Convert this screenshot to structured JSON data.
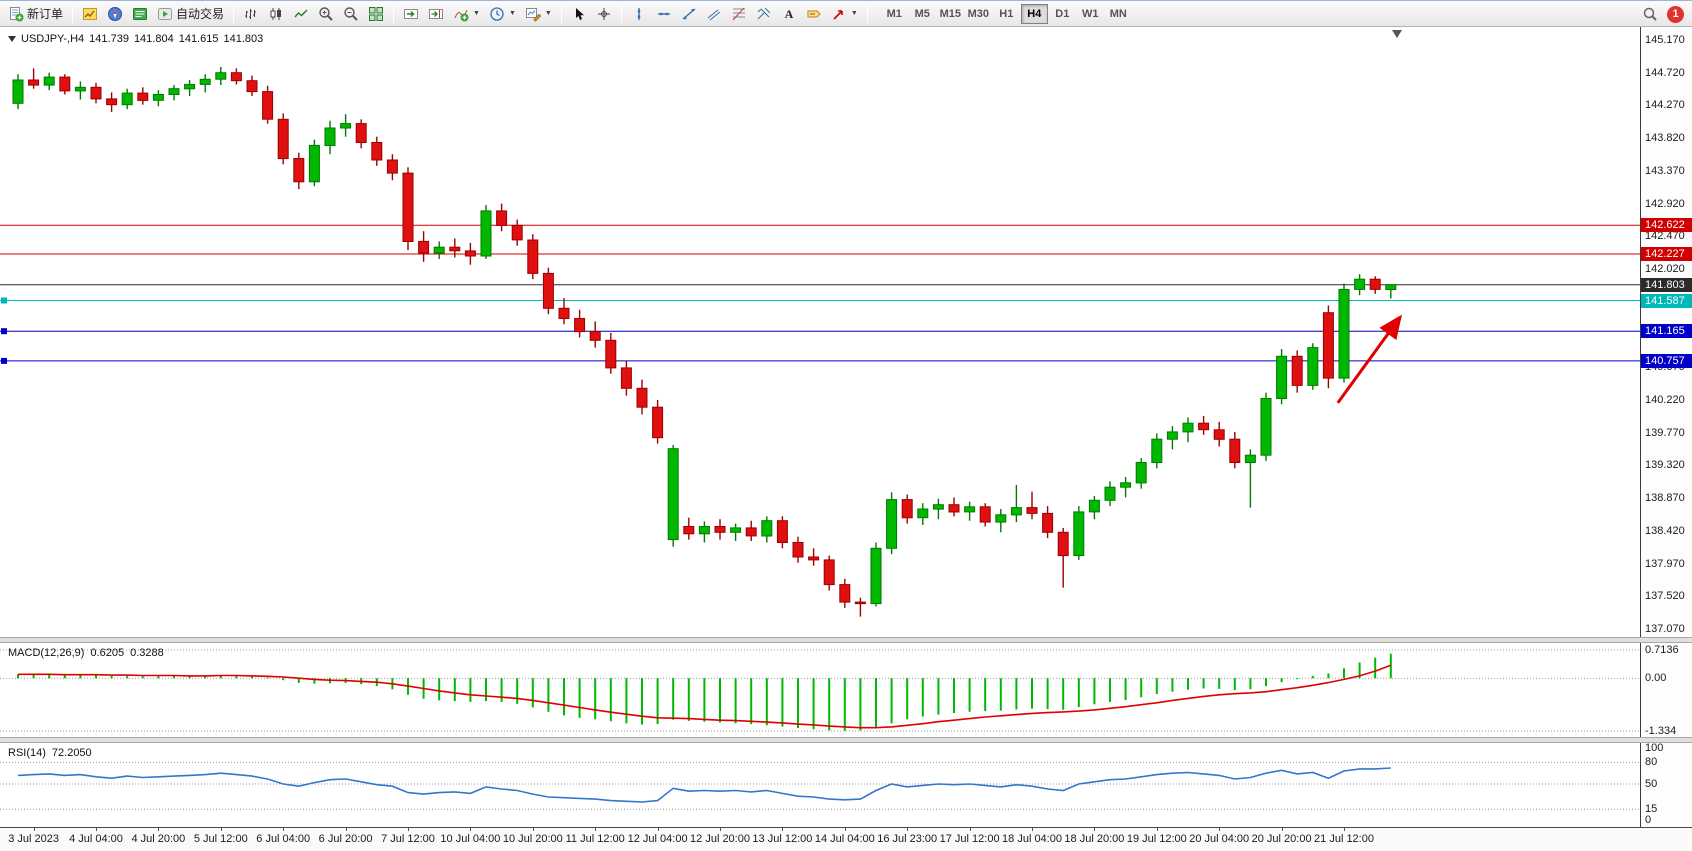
{
  "toolbar": {
    "new_order": {
      "label": "新订单"
    },
    "autotrading": {
      "label": "自动交易"
    },
    "timeframes": {
      "items": [
        "M1",
        "M5",
        "M15",
        "M30",
        "H1",
        "H4",
        "D1",
        "W1",
        "MN"
      ],
      "active": "H4"
    },
    "badge": {
      "count": "1"
    }
  },
  "chart": {
    "symbol": "USDJPY-,H4",
    "ohlc_open": "141.739",
    "ohlc_high": "141.804",
    "ohlc_low": "141.615",
    "ohlc_close": "141.803"
  },
  "chart_data": {
    "type": "candlestick",
    "symbol": "USDJPY-",
    "timeframe": "H4",
    "colors": {
      "up": "#00b800",
      "up_border": "#007a00",
      "down": "#e01010",
      "down_border": "#9c0000"
    },
    "price_axis": {
      "max": 145.17,
      "min": 137.07,
      "tick_step": 0.45,
      "ticks": [
        "145.170",
        "144.720",
        "144.270",
        "143.820",
        "143.370",
        "142.920",
        "142.470",
        "142.020",
        "141.570",
        "141.120",
        "140.670",
        "140.220",
        "139.770",
        "139.320",
        "138.870",
        "138.420",
        "137.970",
        "137.520",
        "137.070"
      ]
    },
    "time_labels": [
      "3 Jul 2023",
      "4 Jul 04:00",
      "4 Jul 20:00",
      "5 Jul 12:00",
      "6 Jul 04:00",
      "6 Jul 20:00",
      "7 Jul 12:00",
      "10 Jul 04:00",
      "10 Jul 20:00",
      "11 Jul 12:00",
      "12 Jul 04:00",
      "12 Jul 20:00",
      "13 Jul 12:00",
      "14 Jul 04:00",
      "16 Jul 23:00",
      "17 Jul 12:00",
      "18 Jul 04:00",
      "18 Jul 20:00",
      "19 Jul 12:00",
      "20 Jul 04:00",
      "20 Jul 20:00",
      "21 Jul 12:00"
    ],
    "label_every": 4,
    "label_offset": 1,
    "candles": [
      [
        144.3,
        144.7,
        144.22,
        144.62
      ],
      [
        144.62,
        144.78,
        144.5,
        144.55
      ],
      [
        144.55,
        144.72,
        144.48,
        144.66
      ],
      [
        144.66,
        144.7,
        144.42,
        144.47
      ],
      [
        144.47,
        144.6,
        144.35,
        144.52
      ],
      [
        144.52,
        144.58,
        144.3,
        144.36
      ],
      [
        144.36,
        144.45,
        144.18,
        144.28
      ],
      [
        144.28,
        144.5,
        144.22,
        144.44
      ],
      [
        144.44,
        144.52,
        144.28,
        144.34
      ],
      [
        144.34,
        144.48,
        144.26,
        144.42
      ],
      [
        144.42,
        144.55,
        144.34,
        144.5
      ],
      [
        144.5,
        144.62,
        144.4,
        144.56
      ],
      [
        144.56,
        144.7,
        144.45,
        144.63
      ],
      [
        144.63,
        144.8,
        144.55,
        144.72
      ],
      [
        144.72,
        144.78,
        144.56,
        144.61
      ],
      [
        144.61,
        144.68,
        144.4,
        144.46
      ],
      [
        144.46,
        144.54,
        144.02,
        144.08
      ],
      [
        144.08,
        144.16,
        143.46,
        143.54
      ],
      [
        143.54,
        143.62,
        143.12,
        143.22
      ],
      [
        143.22,
        143.8,
        143.16,
        143.72
      ],
      [
        143.72,
        144.06,
        143.6,
        143.96
      ],
      [
        143.96,
        144.15,
        143.84,
        144.02
      ],
      [
        144.02,
        144.08,
        143.68,
        143.76
      ],
      [
        143.76,
        143.84,
        143.44,
        143.52
      ],
      [
        143.52,
        143.6,
        143.24,
        143.34
      ],
      [
        143.34,
        143.42,
        142.28,
        142.4
      ],
      [
        142.4,
        142.54,
        142.12,
        142.24
      ],
      [
        142.24,
        142.4,
        142.16,
        142.32
      ],
      [
        142.32,
        142.44,
        142.18,
        142.27
      ],
      [
        142.27,
        142.38,
        142.08,
        142.2
      ],
      [
        142.2,
        142.9,
        142.16,
        142.82
      ],
      [
        142.82,
        142.92,
        142.54,
        142.62
      ],
      [
        142.62,
        142.7,
        142.34,
        142.42
      ],
      [
        142.42,
        142.5,
        141.88,
        141.96
      ],
      [
        141.96,
        142.04,
        141.4,
        141.48
      ],
      [
        141.48,
        141.62,
        141.26,
        141.34
      ],
      [
        141.34,
        141.46,
        141.08,
        141.16
      ],
      [
        141.16,
        141.3,
        140.94,
        141.04
      ],
      [
        141.04,
        141.14,
        140.58,
        140.66
      ],
      [
        140.66,
        140.76,
        140.28,
        140.38
      ],
      [
        140.38,
        140.5,
        140.02,
        140.12
      ],
      [
        140.12,
        140.22,
        139.62,
        139.7
      ],
      [
        138.3,
        139.6,
        138.2,
        139.55
      ],
      [
        138.48,
        138.6,
        138.3,
        138.38
      ],
      [
        138.38,
        138.55,
        138.26,
        138.48
      ],
      [
        138.48,
        138.58,
        138.3,
        138.4
      ],
      [
        138.4,
        138.52,
        138.28,
        138.46
      ],
      [
        138.46,
        138.56,
        138.28,
        138.35
      ],
      [
        138.35,
        138.62,
        138.26,
        138.56
      ],
      [
        138.56,
        138.62,
        138.18,
        138.26
      ],
      [
        138.26,
        138.34,
        137.98,
        138.06
      ],
      [
        138.06,
        138.18,
        137.94,
        138.02
      ],
      [
        138.02,
        138.08,
        137.6,
        137.68
      ],
      [
        137.68,
        137.76,
        137.36,
        137.44
      ],
      [
        137.44,
        137.5,
        137.24,
        137.42
      ],
      [
        137.42,
        138.26,
        137.38,
        138.18
      ],
      [
        138.18,
        138.95,
        138.1,
        138.85
      ],
      [
        138.85,
        138.92,
        138.52,
        138.6
      ],
      [
        138.6,
        138.8,
        138.5,
        138.72
      ],
      [
        138.72,
        138.86,
        138.58,
        138.78
      ],
      [
        138.78,
        138.88,
        138.62,
        138.68
      ],
      [
        138.68,
        138.82,
        138.56,
        138.75
      ],
      [
        138.75,
        138.8,
        138.48,
        138.54
      ],
      [
        138.54,
        138.72,
        138.4,
        138.64
      ],
      [
        138.64,
        139.05,
        138.54,
        138.74
      ],
      [
        138.74,
        138.96,
        138.58,
        138.66
      ],
      [
        138.66,
        138.76,
        138.32,
        138.4
      ],
      [
        138.4,
        138.46,
        137.64,
        138.08
      ],
      [
        138.08,
        138.76,
        138.02,
        138.68
      ],
      [
        138.68,
        138.9,
        138.58,
        138.84
      ],
      [
        138.84,
        139.1,
        138.76,
        139.02
      ],
      [
        139.02,
        139.16,
        138.88,
        139.08
      ],
      [
        139.08,
        139.42,
        139.0,
        139.36
      ],
      [
        139.36,
        139.76,
        139.28,
        139.68
      ],
      [
        139.68,
        139.86,
        139.54,
        139.78
      ],
      [
        139.78,
        139.98,
        139.64,
        139.9
      ],
      [
        139.9,
        140.0,
        139.74,
        139.81
      ],
      [
        139.81,
        139.92,
        139.58,
        139.68
      ],
      [
        139.68,
        139.78,
        139.28,
        139.36
      ],
      [
        139.36,
        139.54,
        138.74,
        139.46
      ],
      [
        139.46,
        140.32,
        139.38,
        140.24
      ],
      [
        140.24,
        140.92,
        140.16,
        140.82
      ],
      [
        140.82,
        140.9,
        140.32,
        140.42
      ],
      [
        140.42,
        141.0,
        140.36,
        140.94
      ],
      [
        141.42,
        141.52,
        140.38,
        140.52
      ],
      [
        140.52,
        141.82,
        140.46,
        141.74
      ],
      [
        141.74,
        141.95,
        141.66,
        141.88
      ],
      [
        141.88,
        141.92,
        141.68,
        141.74
      ],
      [
        141.739,
        141.804,
        141.615,
        141.803
      ]
    ],
    "hlines": [
      {
        "price": 142.622,
        "label": "142.622",
        "color": "#d00000",
        "handles": false
      },
      {
        "price": 142.227,
        "label": "142.227",
        "color": "#d00000",
        "handles": false
      },
      {
        "price": 141.803,
        "label": "141.803",
        "color": "#2b2b2b",
        "handles": false,
        "is_price_line": true
      },
      {
        "price": 141.587,
        "label": "141.587",
        "color": "#00b8b8",
        "handles": true
      },
      {
        "price": 141.165,
        "label": "141.165",
        "color": "#0000c8",
        "handles": true
      },
      {
        "price": 140.757,
        "label": "140.757",
        "color": "#0000c8",
        "handles": true
      }
    ],
    "arrow": {
      "from_index": 84.6,
      "from_price": 140.18,
      "to_index": 88.6,
      "to_price": 141.36,
      "color": "#e00000"
    },
    "macd": {
      "name": "MACD(12,26,9)",
      "main_value": "0.6205",
      "signal_value": "0.3288",
      "max": 0.7136,
      "min": -1.334,
      "axis_labels": [
        "0.7136",
        "0.00",
        "-1.334"
      ],
      "histogram_color": "#00b800",
      "signal_color": "#e00000",
      "histogram": [
        0.1,
        0.09,
        0.09,
        0.08,
        0.08,
        0.07,
        0.06,
        0.06,
        0.05,
        0.05,
        0.06,
        0.06,
        0.07,
        0.08,
        0.07,
        0.05,
        0.02,
        -0.05,
        -0.12,
        -0.14,
        -0.13,
        -0.12,
        -0.15,
        -0.2,
        -0.28,
        -0.42,
        -0.52,
        -0.56,
        -0.58,
        -0.6,
        -0.58,
        -0.6,
        -0.65,
        -0.74,
        -0.85,
        -0.94,
        -1.0,
        -1.04,
        -1.09,
        -1.14,
        -1.17,
        -1.16,
        -1.05,
        -1.08,
        -1.1,
        -1.12,
        -1.14,
        -1.16,
        -1.19,
        -1.22,
        -1.26,
        -1.29,
        -1.32,
        -1.33,
        -1.32,
        -1.26,
        -1.14,
        -1.04,
        -0.97,
        -0.92,
        -0.88,
        -0.85,
        -0.83,
        -0.82,
        -0.79,
        -0.77,
        -0.78,
        -0.8,
        -0.73,
        -0.66,
        -0.6,
        -0.55,
        -0.48,
        -0.4,
        -0.34,
        -0.29,
        -0.26,
        -0.27,
        -0.3,
        -0.28,
        -0.2,
        -0.1,
        -0.02,
        0.06,
        0.12,
        0.25,
        0.4,
        0.52,
        0.62
      ],
      "signal": [
        0.1,
        0.1,
        0.1,
        0.09,
        0.09,
        0.09,
        0.08,
        0.08,
        0.07,
        0.07,
        0.07,
        0.06,
        0.06,
        0.07,
        0.07,
        0.06,
        0.05,
        0.03,
        0.0,
        -0.03,
        -0.05,
        -0.06,
        -0.08,
        -0.1,
        -0.14,
        -0.2,
        -0.26,
        -0.32,
        -0.37,
        -0.42,
        -0.45,
        -0.48,
        -0.51,
        -0.56,
        -0.62,
        -0.68,
        -0.74,
        -0.8,
        -0.86,
        -0.91,
        -0.96,
        -1.0,
        -1.01,
        -1.02,
        -1.04,
        -1.06,
        -1.07,
        -1.09,
        -1.11,
        -1.13,
        -1.16,
        -1.18,
        -1.21,
        -1.23,
        -1.25,
        -1.25,
        -1.23,
        -1.19,
        -1.15,
        -1.1,
        -1.06,
        -1.02,
        -0.98,
        -0.95,
        -0.92,
        -0.89,
        -0.87,
        -0.85,
        -0.83,
        -0.8,
        -0.76,
        -0.72,
        -0.67,
        -0.62,
        -0.56,
        -0.51,
        -0.46,
        -0.42,
        -0.39,
        -0.37,
        -0.34,
        -0.29,
        -0.24,
        -0.18,
        -0.11,
        -0.03,
        0.06,
        0.18,
        0.33
      ]
    },
    "rsi": {
      "name": "RSI(14)",
      "value": "72.2050",
      "axis_labels": [
        "100",
        "80",
        "50",
        "15",
        "0"
      ],
      "levels": [
        80,
        50,
        15
      ],
      "color": "#3377cc",
      "values": [
        62,
        63,
        64,
        62,
        63,
        60,
        58,
        61,
        59,
        60,
        61,
        62,
        63,
        65,
        63,
        61,
        57,
        50,
        47,
        52,
        56,
        57,
        53,
        49,
        47,
        38,
        36,
        38,
        39,
        37,
        46,
        43,
        41,
        36,
        32,
        31,
        30,
        29,
        27,
        26,
        25,
        27,
        44,
        40,
        41,
        40,
        41,
        39,
        41,
        37,
        33,
        32,
        29,
        28,
        29,
        41,
        50,
        46,
        48,
        50,
        49,
        50,
        48,
        46,
        49,
        47,
        43,
        41,
        50,
        53,
        56,
        57,
        60,
        63,
        65,
        66,
        64,
        62,
        57,
        59,
        65,
        69,
        64,
        66,
        58,
        68,
        71,
        71,
        72.2
      ]
    }
  }
}
